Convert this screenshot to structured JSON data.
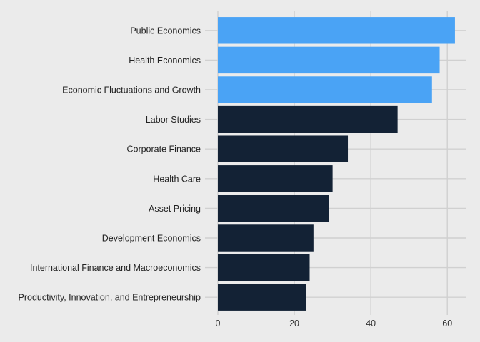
{
  "chart_data": {
    "type": "bar",
    "orientation": "horizontal",
    "title": "",
    "xlabel": "",
    "ylabel": "",
    "categories": [
      "Public Economics",
      "Health Economics",
      "Economic Fluctuations and Growth",
      "Labor Studies",
      "Corporate Finance",
      "Health Care",
      "Asset Pricing",
      "Development Economics",
      "International Finance and Macroeconomics",
      "Productivity, Innovation, and Entrepreneurship"
    ],
    "values": [
      62,
      58,
      56,
      47,
      34,
      30,
      29,
      25,
      24,
      23
    ],
    "highlighted": [
      true,
      true,
      true,
      false,
      false,
      false,
      false,
      false,
      false,
      false
    ],
    "xlim": [
      0,
      65
    ],
    "x_ticks": [
      "0",
      "20",
      "40",
      "60"
    ],
    "grid": true,
    "colors": {
      "highlight": "#4aa3f5",
      "default": "#132235",
      "background": "#ebebeb",
      "grid": "#d0d0d0"
    }
  }
}
